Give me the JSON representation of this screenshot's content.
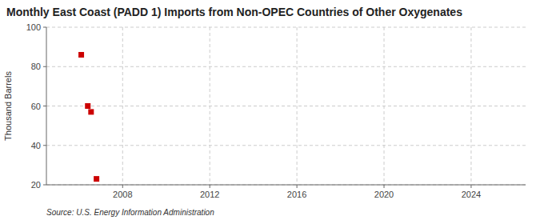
{
  "chart_data": {
    "type": "scatter",
    "title": "Monthly East Coast (PADD 1) Imports from Non-OPEC Countries of Other Oxygenates",
    "ylabel": "Thousand Barrels",
    "source": "Source: U.S. Energy Information Administration",
    "x": [
      2006.1,
      2006.4,
      2006.55,
      2006.8
    ],
    "values": [
      86,
      60,
      57,
      23
    ],
    "color": "#cc0000",
    "marker": "square",
    "xlim": [
      2004.5,
      2026.5
    ],
    "ylim": [
      20,
      100
    ],
    "xticks": [
      2008,
      2012,
      2016,
      2020,
      2024
    ],
    "yticks": [
      20,
      40,
      60,
      80,
      100
    ],
    "grid": true
  }
}
